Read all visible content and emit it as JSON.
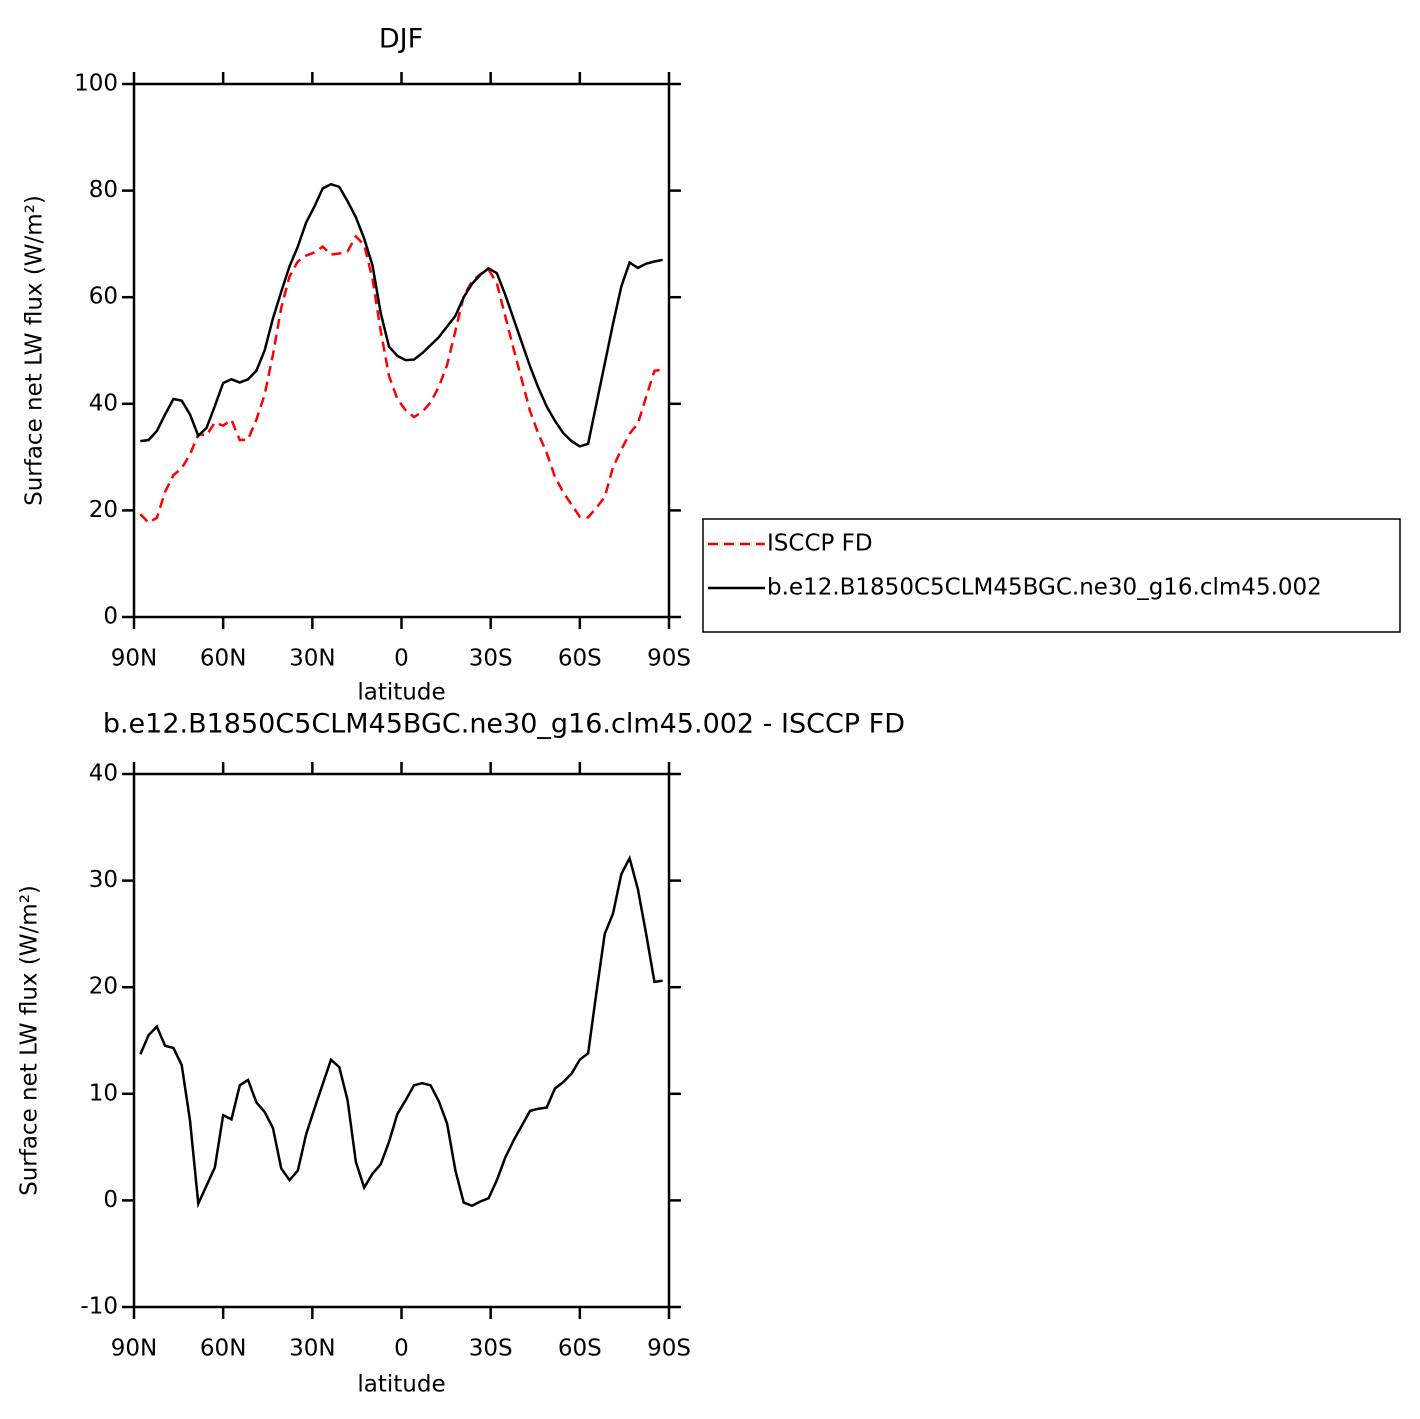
{
  "chart_data": [
    {
      "type": "line",
      "title": "DJF",
      "xlabel": "latitude",
      "ylabel": "Surface net LW flux (W/m²)",
      "x": [
        87.86,
        85.1,
        82.31,
        79.53,
        76.74,
        73.95,
        71.16,
        68.37,
        65.58,
        62.79,
        60.0,
        57.21,
        54.42,
        51.63,
        48.84,
        46.05,
        43.26,
        40.47,
        37.67,
        34.88,
        32.09,
        29.3,
        26.51,
        23.72,
        20.93,
        18.14,
        15.35,
        12.56,
        9.77,
        6.98,
        4.19,
        1.4,
        -1.4,
        -4.19,
        -6.98,
        -9.77,
        -12.56,
        -15.35,
        -18.14,
        -20.93,
        -23.72,
        -26.51,
        -29.3,
        -32.09,
        -34.88,
        -37.67,
        -40.47,
        -43.26,
        -46.05,
        -48.84,
        -51.63,
        -54.42,
        -57.21,
        -60.0,
        -62.79,
        -65.58,
        -68.37,
        -71.16,
        -73.95,
        -76.74,
        -79.53,
        -82.31,
        -85.1,
        -87.86
      ],
      "xlim": [
        90,
        -90
      ],
      "xticks": [
        {
          "value": 90,
          "label": "90N"
        },
        {
          "value": 60,
          "label": "60N"
        },
        {
          "value": 30,
          "label": "30N"
        },
        0,
        {
          "value": -30,
          "label": "30S"
        },
        {
          "value": -60,
          "label": "60S"
        },
        {
          "value": -90,
          "label": "90S"
        }
      ],
      "ylim": [
        0,
        100
      ],
      "yticks": [
        0,
        20,
        40,
        60,
        80,
        100
      ],
      "legend": "right",
      "series": [
        {
          "name": "ISCCP FD",
          "color": "#ff0000",
          "style": "dashed",
          "values": [
            19.3,
            17.7,
            18.6,
            23.5,
            26.6,
            27.9,
            30.5,
            34.3,
            34.1,
            36.5,
            35.9,
            37.0,
            33.2,
            33.3,
            37.0,
            41.7,
            49.2,
            58.0,
            63.9,
            66.7,
            67.8,
            68.4,
            69.5,
            68.0,
            68.2,
            68.6,
            71.4,
            69.8,
            63.5,
            53.6,
            45.2,
            40.9,
            38.8,
            37.5,
            38.5,
            40.2,
            43.2,
            47.3,
            53.7,
            60.2,
            63.0,
            64.3,
            65.2,
            62.6,
            56.5,
            50.4,
            44.5,
            38.6,
            34.4,
            30.8,
            26.3,
            23.4,
            21.1,
            18.8,
            18.7,
            20.5,
            22.5,
            28.1,
            31.4,
            34.4,
            36.3,
            41.3,
            46.2,
            46.4
          ]
        },
        {
          "name": "b.e12.B1850C5CLM45BGC.ne30_g16.clm45.002",
          "color": "#000000",
          "style": "solid",
          "values": [
            33.0,
            33.2,
            34.9,
            38.0,
            40.9,
            40.6,
            38.0,
            34.0,
            35.5,
            39.6,
            43.9,
            44.6,
            44.0,
            44.6,
            46.2,
            50.0,
            56.0,
            61.0,
            65.8,
            69.5,
            74.0,
            77.0,
            80.4,
            81.2,
            80.7,
            78.0,
            75.0,
            71.0,
            66.0,
            57.0,
            50.7,
            49.0,
            48.2,
            48.3,
            49.5,
            51.0,
            52.5,
            54.5,
            56.5,
            60.0,
            62.5,
            64.2,
            65.4,
            64.5,
            60.5,
            56.0,
            51.5,
            47.0,
            43.0,
            39.5,
            36.8,
            34.5,
            33.0,
            32.0,
            32.5,
            40.0,
            47.5,
            55.0,
            62.0,
            66.5,
            65.5,
            66.3,
            66.7,
            67.0
          ]
        }
      ]
    },
    {
      "type": "line",
      "title": "b.e12.B1850C5CLM45BGC.ne30_g16.clm45.002 - ISCCP FD",
      "xlabel": "latitude",
      "ylabel": "Surface net LW flux (W/m²)",
      "x": [
        87.86,
        85.1,
        82.31,
        79.53,
        76.74,
        73.95,
        71.16,
        68.37,
        65.58,
        62.79,
        60.0,
        57.21,
        54.42,
        51.63,
        48.84,
        46.05,
        43.26,
        40.47,
        37.67,
        34.88,
        32.09,
        29.3,
        26.51,
        23.72,
        20.93,
        18.14,
        15.35,
        12.56,
        9.77,
        6.98,
        4.19,
        1.4,
        -1.4,
        -4.19,
        -6.98,
        -9.77,
        -12.56,
        -15.35,
        -18.14,
        -20.93,
        -23.72,
        -26.51,
        -29.3,
        -32.09,
        -34.88,
        -37.67,
        -40.47,
        -43.26,
        -46.05,
        -48.84,
        -51.63,
        -54.42,
        -57.21,
        -60.0,
        -62.79,
        -65.58,
        -68.37,
        -71.16,
        -73.95,
        -76.74,
        -79.53,
        -82.31,
        -85.1,
        -87.86
      ],
      "xlim": [
        90,
        -90
      ],
      "xticks": [
        {
          "value": 90,
          "label": "90N"
        },
        {
          "value": 60,
          "label": "60N"
        },
        {
          "value": 30,
          "label": "30N"
        },
        0,
        {
          "value": -30,
          "label": "30S"
        },
        {
          "value": -60,
          "label": "60S"
        },
        {
          "value": -90,
          "label": "90S"
        }
      ],
      "ylim": [
        -10,
        40
      ],
      "yticks": [
        -10,
        0,
        10,
        20,
        30,
        40
      ],
      "series": [
        {
          "color": "#000000",
          "style": "solid",
          "values": [
            13.7,
            15.5,
            16.3,
            14.5,
            14.3,
            12.7,
            7.5,
            -0.3,
            1.4,
            3.1,
            8.0,
            7.6,
            10.8,
            11.3,
            9.2,
            8.3,
            6.8,
            3.0,
            1.9,
            2.8,
            6.2,
            8.6,
            10.9,
            13.2,
            12.5,
            9.4,
            3.6,
            1.2,
            2.5,
            3.4,
            5.5,
            8.1,
            9.4,
            10.8,
            11.0,
            10.8,
            9.3,
            7.2,
            2.8,
            -0.2,
            -0.5,
            -0.1,
            0.2,
            1.9,
            4.0,
            5.6,
            7.0,
            8.4,
            8.6,
            8.7,
            10.5,
            11.1,
            11.9,
            13.2,
            13.8,
            19.5,
            25.0,
            26.9,
            30.6,
            32.1,
            29.2,
            25.0,
            20.5,
            20.6
          ]
        }
      ]
    }
  ]
}
